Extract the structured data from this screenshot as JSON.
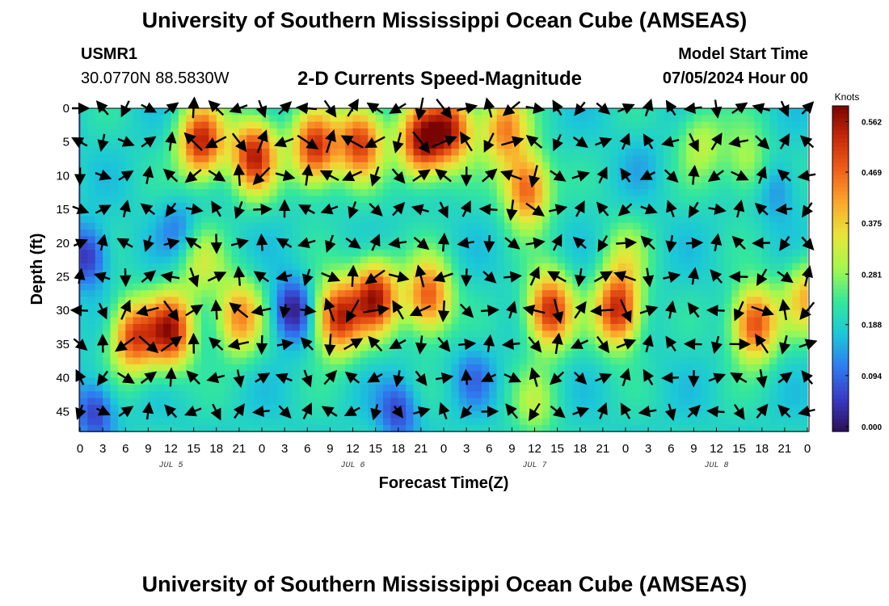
{
  "title": "University of Southern Mississippi Ocean Cube (AMSEAS)",
  "footer_title": "University of Southern Mississippi Ocean Cube (AMSEAS)",
  "station": {
    "id": "USMR1",
    "coords": "30.0770N  88.5830W"
  },
  "subtitle": "2-D Currents Speed-Magnitude",
  "model_start": {
    "label": "Model Start Time",
    "value": "07/05/2024 Hour 00"
  },
  "chart_data": {
    "type": "heatmap",
    "title": "2-D Currents Speed-Magnitude",
    "xlabel": "Forecast Time(Z)",
    "ylabel": "Depth (ft)",
    "x_unit": "hours since 07/05/2024 00Z",
    "xlim": [
      0,
      96
    ],
    "ylim": [
      0,
      48
    ],
    "y_inverted": true,
    "x_ticks": [
      0,
      3,
      6,
      9,
      12,
      15,
      18,
      21,
      24,
      27,
      30,
      33,
      36,
      39,
      42,
      45,
      48,
      51,
      54,
      57,
      60,
      63,
      66,
      69,
      72,
      75,
      78,
      81,
      84,
      87,
      90,
      93,
      96
    ],
    "x_tick_labels": [
      "0",
      "3",
      "6",
      "9",
      "12",
      "15",
      "18",
      "21",
      "0",
      "3",
      "6",
      "9",
      "12",
      "15",
      "18",
      "21",
      "0",
      "3",
      "6",
      "9",
      "12",
      "15",
      "18",
      "21",
      "0",
      "3",
      "6",
      "9",
      "12",
      "15",
      "18",
      "21",
      "0"
    ],
    "date_labels": [
      {
        "label": "JUL 5",
        "x": 12
      },
      {
        "label": "JUL 6",
        "x": 36
      },
      {
        "label": "JUL 7",
        "x": 60
      },
      {
        "label": "JUL 8",
        "x": 84
      }
    ],
    "y_ticks": [
      0,
      5,
      10,
      15,
      20,
      25,
      30,
      35,
      40,
      45
    ],
    "colorbar": {
      "title": "Knots",
      "min": 0.0,
      "max": 0.6,
      "ticks": [
        0.0,
        0.094,
        0.188,
        0.281,
        0.375,
        0.469,
        0.562
      ],
      "tick_labels": [
        "0.000",
        "0.094",
        "0.188",
        "0.281",
        "0.375",
        "0.469",
        "0.562"
      ],
      "colormap": [
        "#2d0f57",
        "#3a3ac4",
        "#2f7df0",
        "#1bc8d8",
        "#35e89a",
        "#a3f84d",
        "#e8e63a",
        "#fbaa2d",
        "#f0621a",
        "#c82a08",
        "#7a0403"
      ]
    },
    "speed_field_note": "estimated speed maxima (knots) by time (h) and depth (ft)",
    "speed_blobs": [
      {
        "t": 16,
        "d": 5,
        "speed": 0.55
      },
      {
        "t": 23,
        "d": 7,
        "speed": 0.55
      },
      {
        "t": 31,
        "d": 6,
        "speed": 0.54
      },
      {
        "t": 37,
        "d": 5,
        "speed": 0.52
      },
      {
        "t": 45,
        "d": 5,
        "speed": 0.55
      },
      {
        "t": 49,
        "d": 3,
        "speed": 0.52
      },
      {
        "t": 56,
        "d": 3,
        "speed": 0.45
      },
      {
        "t": 59,
        "d": 12,
        "speed": 0.5
      },
      {
        "t": 12,
        "d": 33,
        "speed": 0.55
      },
      {
        "t": 7,
        "d": 34,
        "speed": 0.5
      },
      {
        "t": 21,
        "d": 31,
        "speed": 0.45
      },
      {
        "t": 34,
        "d": 31,
        "speed": 0.55
      },
      {
        "t": 39,
        "d": 28,
        "speed": 0.55
      },
      {
        "t": 46,
        "d": 28,
        "speed": 0.5
      },
      {
        "t": 62,
        "d": 30,
        "speed": 0.55
      },
      {
        "t": 71,
        "d": 30,
        "speed": 0.55
      },
      {
        "t": 89,
        "d": 32,
        "speed": 0.52
      },
      {
        "t": 96,
        "d": 28,
        "speed": 0.4
      },
      {
        "t": 16,
        "d": 23,
        "speed": 0.32
      },
      {
        "t": 72,
        "d": 22,
        "speed": 0.3
      },
      {
        "t": 82,
        "d": 5,
        "speed": 0.32
      },
      {
        "t": 88,
        "d": 8,
        "speed": 0.32
      },
      {
        "t": 60,
        "d": 44,
        "speed": 0.3
      }
    ],
    "slow_zones": [
      {
        "t": 1,
        "d": 22,
        "speed": 0.08
      },
      {
        "t": 2,
        "d": 45,
        "speed": 0.09
      },
      {
        "t": 28,
        "d": 30,
        "speed": 0.06
      },
      {
        "t": 52,
        "d": 40,
        "speed": 0.14
      },
      {
        "t": 74,
        "d": 8,
        "speed": 0.18
      },
      {
        "t": 92,
        "d": 12,
        "speed": 0.14
      },
      {
        "t": 42,
        "d": 45,
        "speed": 0.1
      },
      {
        "t": 13,
        "d": 18,
        "speed": 0.14
      }
    ],
    "current_vectors_note": "arrows show current direction every 3 h at depths 0-45 ft"
  }
}
